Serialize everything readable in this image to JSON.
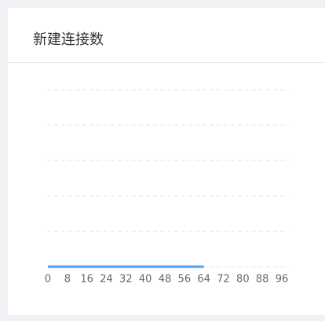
{
  "chart_data": {
    "type": "line",
    "title": "新建连接数",
    "x": [
      0,
      8,
      16,
      24,
      32,
      40,
      48,
      56,
      64
    ],
    "series": [
      {
        "color": "#4ea1f3",
        "values": [
          0,
          0,
          0,
          0,
          0,
          0,
          0,
          0,
          0
        ]
      }
    ],
    "xlim": [
      0,
      96
    ],
    "xticks": [
      0,
      8,
      16,
      24,
      32,
      40,
      48,
      56,
      64,
      72,
      80,
      88,
      96
    ],
    "ylim": [
      0,
      5
    ],
    "yticks": [
      0,
      1,
      2,
      3,
      4,
      5
    ],
    "grid": true
  }
}
